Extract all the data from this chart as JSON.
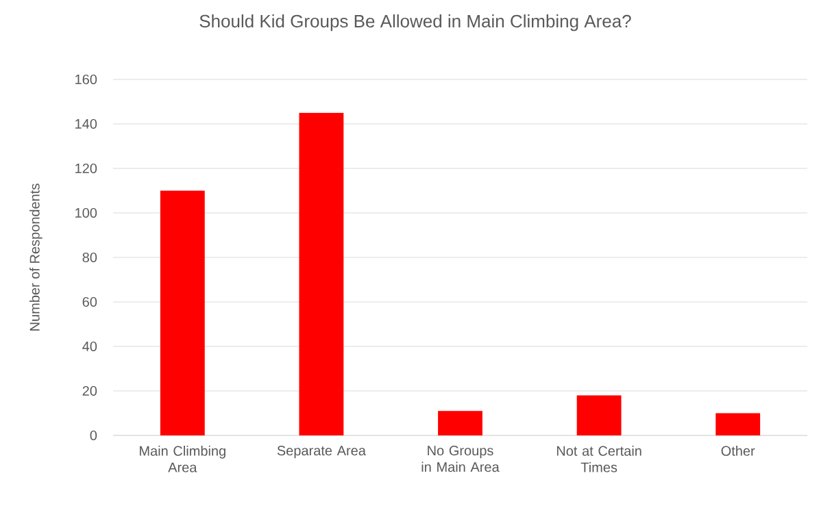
{
  "chart_data": {
    "type": "bar",
    "title": "Should Kid Groups Be Allowed in Main Climbing Area?",
    "ylabel": "Number of Respondents",
    "categories": [
      "Main Climbing Area",
      "Separate Area",
      "No Groups in Main Area",
      "Not at Certain Times",
      "Other"
    ],
    "values": [
      110,
      145,
      11,
      18,
      10
    ],
    "color": "#ff0000",
    "ylim": [
      0,
      160
    ],
    "yticks": [
      0,
      20,
      40,
      60,
      80,
      100,
      120,
      140,
      160
    ],
    "grid": "y"
  }
}
